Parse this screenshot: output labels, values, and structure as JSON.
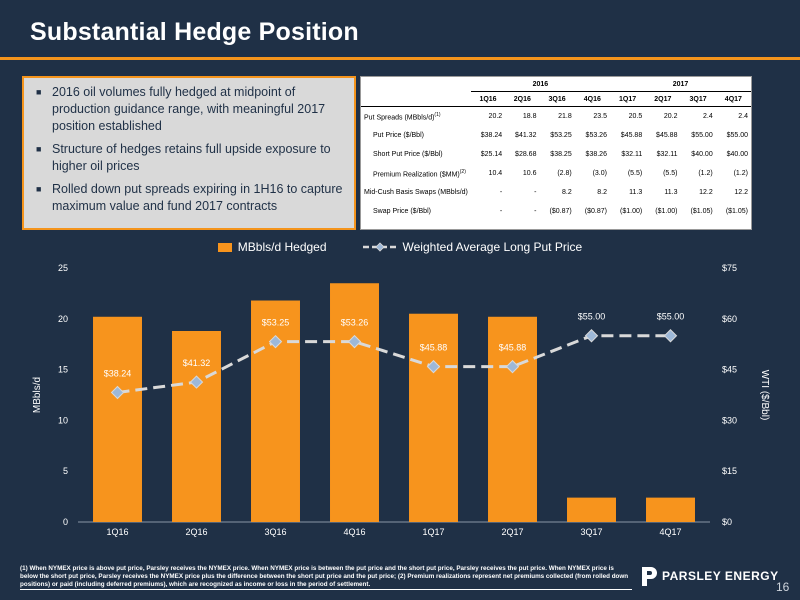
{
  "slide": {
    "title": "Substantial Hedge Position",
    "page_number": "16",
    "accent": "#f4941c",
    "background": "#1f3046"
  },
  "bullets": [
    "2016 oil volumes fully hedged at midpoint of production guidance range, with meaningful 2017 position established",
    "Structure of hedges retains full upside exposure to higher oil prices",
    "Rolled down put spreads expiring in 1H16 to capture maximum value and fund 2017 contracts"
  ],
  "table": {
    "years": [
      "2016",
      "2017"
    ],
    "quarters": [
      "1Q16",
      "2Q16",
      "3Q16",
      "4Q16",
      "1Q17",
      "2Q17",
      "3Q17",
      "4Q17"
    ],
    "rows": [
      {
        "label": "Put Spreads (MBbls/d)",
        "sup": "(1)",
        "indent": false,
        "values": [
          "20.2",
          "18.8",
          "21.8",
          "23.5",
          "20.5",
          "20.2",
          "2.4",
          "2.4"
        ]
      },
      {
        "label": "Put Price ($/Bbl)",
        "sup": "",
        "indent": true,
        "values": [
          "$38.24",
          "$41.32",
          "$53.25",
          "$53.26",
          "$45.88",
          "$45.88",
          "$55.00",
          "$55.00"
        ]
      },
      {
        "label": "Short Put Price ($/Bbl)",
        "sup": "",
        "indent": true,
        "values": [
          "$25.14",
          "$28.68",
          "$38.25",
          "$38.26",
          "$32.11",
          "$32.11",
          "$40.00",
          "$40.00"
        ]
      },
      {
        "label": "Premium Realization ($MM)",
        "sup": "(2)",
        "indent": true,
        "values": [
          "10.4",
          "10.6",
          "(2.8)",
          "(3.0)",
          "(5.5)",
          "(5.5)",
          "(1.2)",
          "(1.2)"
        ]
      },
      {
        "label": "Mid-Cush Basis Swaps (MBbls/d)",
        "sup": "",
        "indent": false,
        "values": [
          "-",
          "-",
          "8.2",
          "8.2",
          "11.3",
          "11.3",
          "12.2",
          "12.2"
        ]
      },
      {
        "label": "Swap Price ($/Bbl)",
        "sup": "",
        "indent": true,
        "values": [
          "-",
          "-",
          "($0.87)",
          "($0.87)",
          "($1.00)",
          "($1.00)",
          "($1.05)",
          "($1.05)"
        ]
      }
    ]
  },
  "chart_data": {
    "type": "bar",
    "categories": [
      "1Q16",
      "2Q16",
      "3Q16",
      "4Q16",
      "1Q17",
      "2Q17",
      "3Q17",
      "4Q17"
    ],
    "series": [
      {
        "name": "MBbls/d Hedged",
        "type": "bar",
        "axis": "left",
        "color": "#f7941d",
        "values": [
          20.2,
          18.8,
          21.8,
          23.5,
          20.5,
          20.2,
          2.4,
          2.4
        ]
      },
      {
        "name": "Weighted Average Long Put Price",
        "type": "line",
        "axis": "right",
        "color": "#d9d9d9",
        "dashed": true,
        "values": [
          38.24,
          41.32,
          53.25,
          53.26,
          45.88,
          45.88,
          55.0,
          55.0
        ],
        "labels": [
          "$38.24",
          "$41.32",
          "$53.25",
          "$53.26",
          "$45.88",
          "$45.88",
          "$55.00",
          "$55.00"
        ]
      }
    ],
    "ylabel_left": "MBbls/d",
    "ylabel_right": "WTI ($/Bbl)",
    "ylim_left": [
      0,
      25
    ],
    "yticks_left": [
      "0",
      "5",
      "10",
      "15",
      "20",
      "25"
    ],
    "ylim_right": [
      0,
      75
    ],
    "yticks_right": [
      "$0",
      "$15",
      "$30",
      "$45",
      "$60",
      "$75"
    ],
    "grid": false,
    "legend_position": "top-center"
  },
  "legend": {
    "bar_label": "MBbls/d Hedged",
    "line_label": "Weighted Average Long Put Price"
  },
  "footnote": "(1) When NYMEX price is above put price, Parsley receives the NYMEX price. When NYMEX price is between the put price and the short put price, Parsley receives the put price. When NYMEX price is below the short put price, Parsley receives the NYMEX price plus the difference between the short put price and the put price; (2) Premium realizations represent net premiums collected (from rolled down positions) or paid (including deferred premiums), which are recognized as income or loss in the period of settlement.",
  "logo": {
    "text": "PARSLEY ENERGY",
    "icon": "parsley-p-logo-icon"
  }
}
